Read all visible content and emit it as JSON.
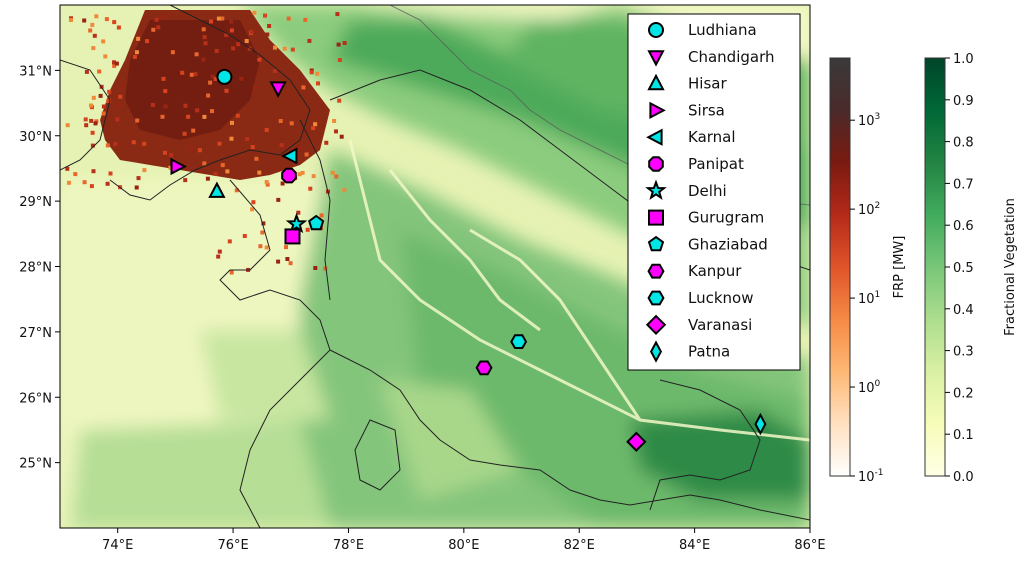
{
  "map": {
    "type": "map",
    "lon_range": [
      73,
      86
    ],
    "lat_range": [
      24,
      32
    ],
    "x_ticks": [
      {
        "value": 74,
        "label": "74°E"
      },
      {
        "value": 76,
        "label": "76°E"
      },
      {
        "value": 78,
        "label": "78°E"
      },
      {
        "value": 80,
        "label": "80°E"
      },
      {
        "value": 82,
        "label": "82°E"
      },
      {
        "value": 84,
        "label": "84°E"
      },
      {
        "value": 86,
        "label": "86°E"
      }
    ],
    "y_ticks": [
      {
        "value": 25,
        "label": "25°N"
      },
      {
        "value": 26,
        "label": "26°N"
      },
      {
        "value": 27,
        "label": "27°N"
      },
      {
        "value": 28,
        "label": "28°N"
      },
      {
        "value": 29,
        "label": "29°N"
      },
      {
        "value": 30,
        "label": "30°N"
      },
      {
        "value": 31,
        "label": "31°N"
      }
    ],
    "background_layer": "Fractional Vegetation",
    "overlay_layer": "FRP [MW]",
    "fire_region": "Punjab–Haryana dense fire pixels",
    "cities": [
      {
        "name": "Ludhiana",
        "lon": 75.85,
        "lat": 30.9,
        "marker": "circle",
        "color": "#00e5e5"
      },
      {
        "name": "Chandigarh",
        "lon": 76.78,
        "lat": 30.73,
        "marker": "triangle-down",
        "color": "#ff00ff"
      },
      {
        "name": "Hisar",
        "lon": 75.72,
        "lat": 29.15,
        "marker": "triangle-up",
        "color": "#00e5e5"
      },
      {
        "name": "Sirsa",
        "lon": 75.03,
        "lat": 29.53,
        "marker": "triangle-right",
        "color": "#ff00ff"
      },
      {
        "name": "Karnal",
        "lon": 77.0,
        "lat": 29.69,
        "marker": "triangle-left",
        "color": "#00e5e5"
      },
      {
        "name": "Panipat",
        "lon": 76.97,
        "lat": 29.39,
        "marker": "octagon",
        "color": "#ff00ff"
      },
      {
        "name": "Delhi",
        "lon": 77.1,
        "lat": 28.65,
        "marker": "star",
        "color": "#00e5e5"
      },
      {
        "name": "Gurugram",
        "lon": 77.03,
        "lat": 28.46,
        "marker": "square",
        "color": "#ff00ff"
      },
      {
        "name": "Ghaziabad",
        "lon": 77.44,
        "lat": 28.66,
        "marker": "pentagon",
        "color": "#00e5e5"
      },
      {
        "name": "Kanpur",
        "lon": 80.35,
        "lat": 26.45,
        "marker": "hexagon",
        "color": "#ff00ff"
      },
      {
        "name": "Lucknow",
        "lon": 80.95,
        "lat": 26.85,
        "marker": "hexagon",
        "color": "#00e5e5"
      },
      {
        "name": "Varanasi",
        "lon": 82.99,
        "lat": 25.32,
        "marker": "diamond",
        "color": "#ff00ff"
      },
      {
        "name": "Patna",
        "lon": 85.14,
        "lat": 25.59,
        "marker": "thin-diamond",
        "color": "#00e5e5"
      }
    ]
  },
  "frp_colorbar": {
    "label": "FRP [MW]",
    "scale": "log",
    "range": [
      0.1,
      5000
    ],
    "ticks": [
      {
        "value": 0.1,
        "base": "10",
        "exp": "-1"
      },
      {
        "value": 1,
        "base": "10",
        "exp": "0"
      },
      {
        "value": 10,
        "base": "10",
        "exp": "1"
      },
      {
        "value": 100,
        "base": "10",
        "exp": "2"
      },
      {
        "value": 1000,
        "base": "10",
        "exp": "3"
      }
    ],
    "colors": [
      "#ffffff",
      "#ffe0c0",
      "#fdb875",
      "#f58a45",
      "#e0542a",
      "#b42a1a",
      "#7a1a10",
      "#4a2a2a",
      "#3a3a3a"
    ]
  },
  "veg_colorbar": {
    "label": "Fractional Vegetation",
    "range": [
      0,
      1
    ],
    "ticks": [
      {
        "value": 0.0,
        "label": "0.0"
      },
      {
        "value": 0.1,
        "label": "0.1"
      },
      {
        "value": 0.2,
        "label": "0.2"
      },
      {
        "value": 0.3,
        "label": "0.3"
      },
      {
        "value": 0.4,
        "label": "0.4"
      },
      {
        "value": 0.5,
        "label": "0.5"
      },
      {
        "value": 0.6,
        "label": "0.6"
      },
      {
        "value": 0.7,
        "label": "0.7"
      },
      {
        "value": 0.8,
        "label": "0.8"
      },
      {
        "value": 0.9,
        "label": "0.9"
      },
      {
        "value": 1.0,
        "label": "1.0"
      }
    ],
    "colors": [
      "#ffffe5",
      "#f7fcb9",
      "#d9f0a3",
      "#addd8e",
      "#78c679",
      "#41ab5d",
      "#238443",
      "#006837",
      "#004529"
    ]
  }
}
